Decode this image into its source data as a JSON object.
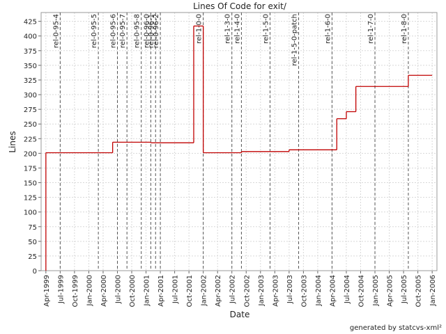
{
  "chart_data": {
    "type": "step-line",
    "title": "Lines Of Code for exit/",
    "x_label": "Date",
    "y_label": "Lines",
    "footer": "generated by statcvs-xml²",
    "xlim": [
      "1999-03",
      "2006-02"
    ],
    "ylim": [
      0,
      440
    ],
    "xticks": [
      {
        "value": "1999-04",
        "label": "Apr-1999"
      },
      {
        "value": "1999-07",
        "label": "Jul-1999"
      },
      {
        "value": "1999-10",
        "label": "Oct-1999"
      },
      {
        "value": "2000-01",
        "label": "Jan-2000"
      },
      {
        "value": "2000-04",
        "label": "Apr-2000"
      },
      {
        "value": "2000-07",
        "label": "Jul-2000"
      },
      {
        "value": "2000-10",
        "label": "Oct-2000"
      },
      {
        "value": "2001-01",
        "label": "Jan-2001"
      },
      {
        "value": "2001-04",
        "label": "Apr-2001"
      },
      {
        "value": "2001-07",
        "label": "Jul-2001"
      },
      {
        "value": "2001-10",
        "label": "Oct-2001"
      },
      {
        "value": "2002-01",
        "label": "Jan-2002"
      },
      {
        "value": "2002-04",
        "label": "Apr-2002"
      },
      {
        "value": "2002-07",
        "label": "Jul-2002"
      },
      {
        "value": "2002-10",
        "label": "Oct-2002"
      },
      {
        "value": "2003-01",
        "label": "Jan-2003"
      },
      {
        "value": "2003-04",
        "label": "Apr-2003"
      },
      {
        "value": "2003-07",
        "label": "Jul-2003"
      },
      {
        "value": "2003-10",
        "label": "Oct-2003"
      },
      {
        "value": "2004-01",
        "label": "Jan-2004"
      },
      {
        "value": "2004-04",
        "label": "Apr-2004"
      },
      {
        "value": "2004-07",
        "label": "Jul-2004"
      },
      {
        "value": "2004-10",
        "label": "Oct-2004"
      },
      {
        "value": "2005-01",
        "label": "Jan-2005"
      },
      {
        "value": "2005-04",
        "label": "Apr-2005"
      },
      {
        "value": "2005-07",
        "label": "Jul-2005"
      },
      {
        "value": "2005-10",
        "label": "Oct-2005"
      },
      {
        "value": "2006-01",
        "label": "Jan-2006"
      }
    ],
    "yticks": [
      0,
      25,
      50,
      75,
      100,
      125,
      150,
      175,
      200,
      225,
      250,
      275,
      300,
      325,
      350,
      375,
      400,
      425
    ],
    "grid": true,
    "series": [
      {
        "name": "Lines",
        "color": "#c00000",
        "x": [
          "1999-04",
          "1999-04",
          "2000-06",
          "2001-02",
          "2001-11",
          "2002-01",
          "2002-09",
          "2003-07",
          "2004-05",
          "2004-07",
          "2004-09",
          "2005-08",
          "2006-01"
        ],
        "values": [
          0,
          201,
          219,
          218,
          417,
          201,
          203,
          206,
          259,
          271,
          314,
          333,
          333
        ]
      }
    ],
    "annotations": [
      {
        "label": "rel-0-95-4",
        "x": "1999-07"
      },
      {
        "label": "rel-0-95-5",
        "x": "2000-03"
      },
      {
        "label": "rel-0-95-6",
        "x": "2000-07"
      },
      {
        "label": "rel-0-95-7",
        "x": "2000-09"
      },
      {
        "label": "rel-0-95-8",
        "x": "2000-12"
      },
      {
        "label": "rel-0-96-0",
        "x": "2001-02"
      },
      {
        "label": "rel-0-96-1",
        "x": "2001-03"
      },
      {
        "label": "rel-0-96-2",
        "x": "2001-04"
      },
      {
        "label": "rel-1-0-0",
        "x": "2002-01"
      },
      {
        "label": "rel-1-3-0",
        "x": "2002-07"
      },
      {
        "label": "rel-1-4-0",
        "x": "2002-09"
      },
      {
        "label": "rel-1-5-0",
        "x": "2003-03"
      },
      {
        "label": "rel-1-5-0-patch",
        "x": "2003-09"
      },
      {
        "label": "rel-1-6-0",
        "x": "2004-04"
      },
      {
        "label": "rel-1-7-0",
        "x": "2005-01"
      },
      {
        "label": "rel-1-8-0",
        "x": "2005-08"
      }
    ]
  }
}
